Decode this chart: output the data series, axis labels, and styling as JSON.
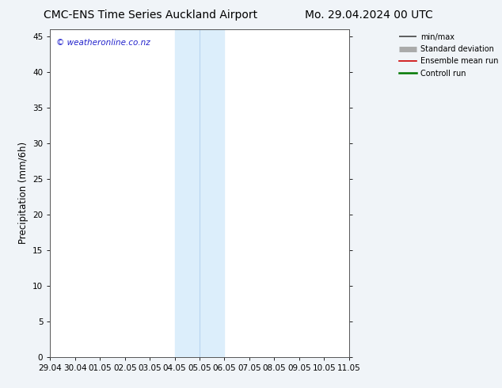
{
  "title_left": "CMC-ENS Time Series Auckland Airport",
  "title_right": "Mo. 29.04.2024 00 UTC",
  "ylabel": "Precipitation (mm/6h)",
  "watermark": "© weatheronline.co.nz",
  "x_ticks": [
    "29.04",
    "30.04",
    "01.05",
    "02.05",
    "03.05",
    "04.05",
    "05.05",
    "06.05",
    "07.05",
    "08.05",
    "09.05",
    "10.05",
    "11.05"
  ],
  "x_values": [
    0,
    1,
    2,
    3,
    4,
    5,
    6,
    7,
    8,
    9,
    10,
    11,
    12
  ],
  "ylim": [
    0,
    46
  ],
  "yticks": [
    0,
    5,
    10,
    15,
    20,
    25,
    30,
    35,
    40,
    45
  ],
  "shaded_x1": 5,
  "shaded_x2": 7,
  "shaded_color": "#dceefb",
  "divider_x": 6,
  "divider_color": "#b8d4f0",
  "bg_color": "#f0f4f8",
  "plot_bg_color": "#ffffff",
  "legend_minmax_color": "#444444",
  "legend_stddev_color": "#aaaaaa",
  "legend_ensemble_color": "#cc0000",
  "legend_control_color": "#007700",
  "title_fontsize": 10,
  "tick_fontsize": 7.5,
  "label_fontsize": 8.5,
  "watermark_color": "#2222cc",
  "xlim_min": 0,
  "xlim_max": 12
}
